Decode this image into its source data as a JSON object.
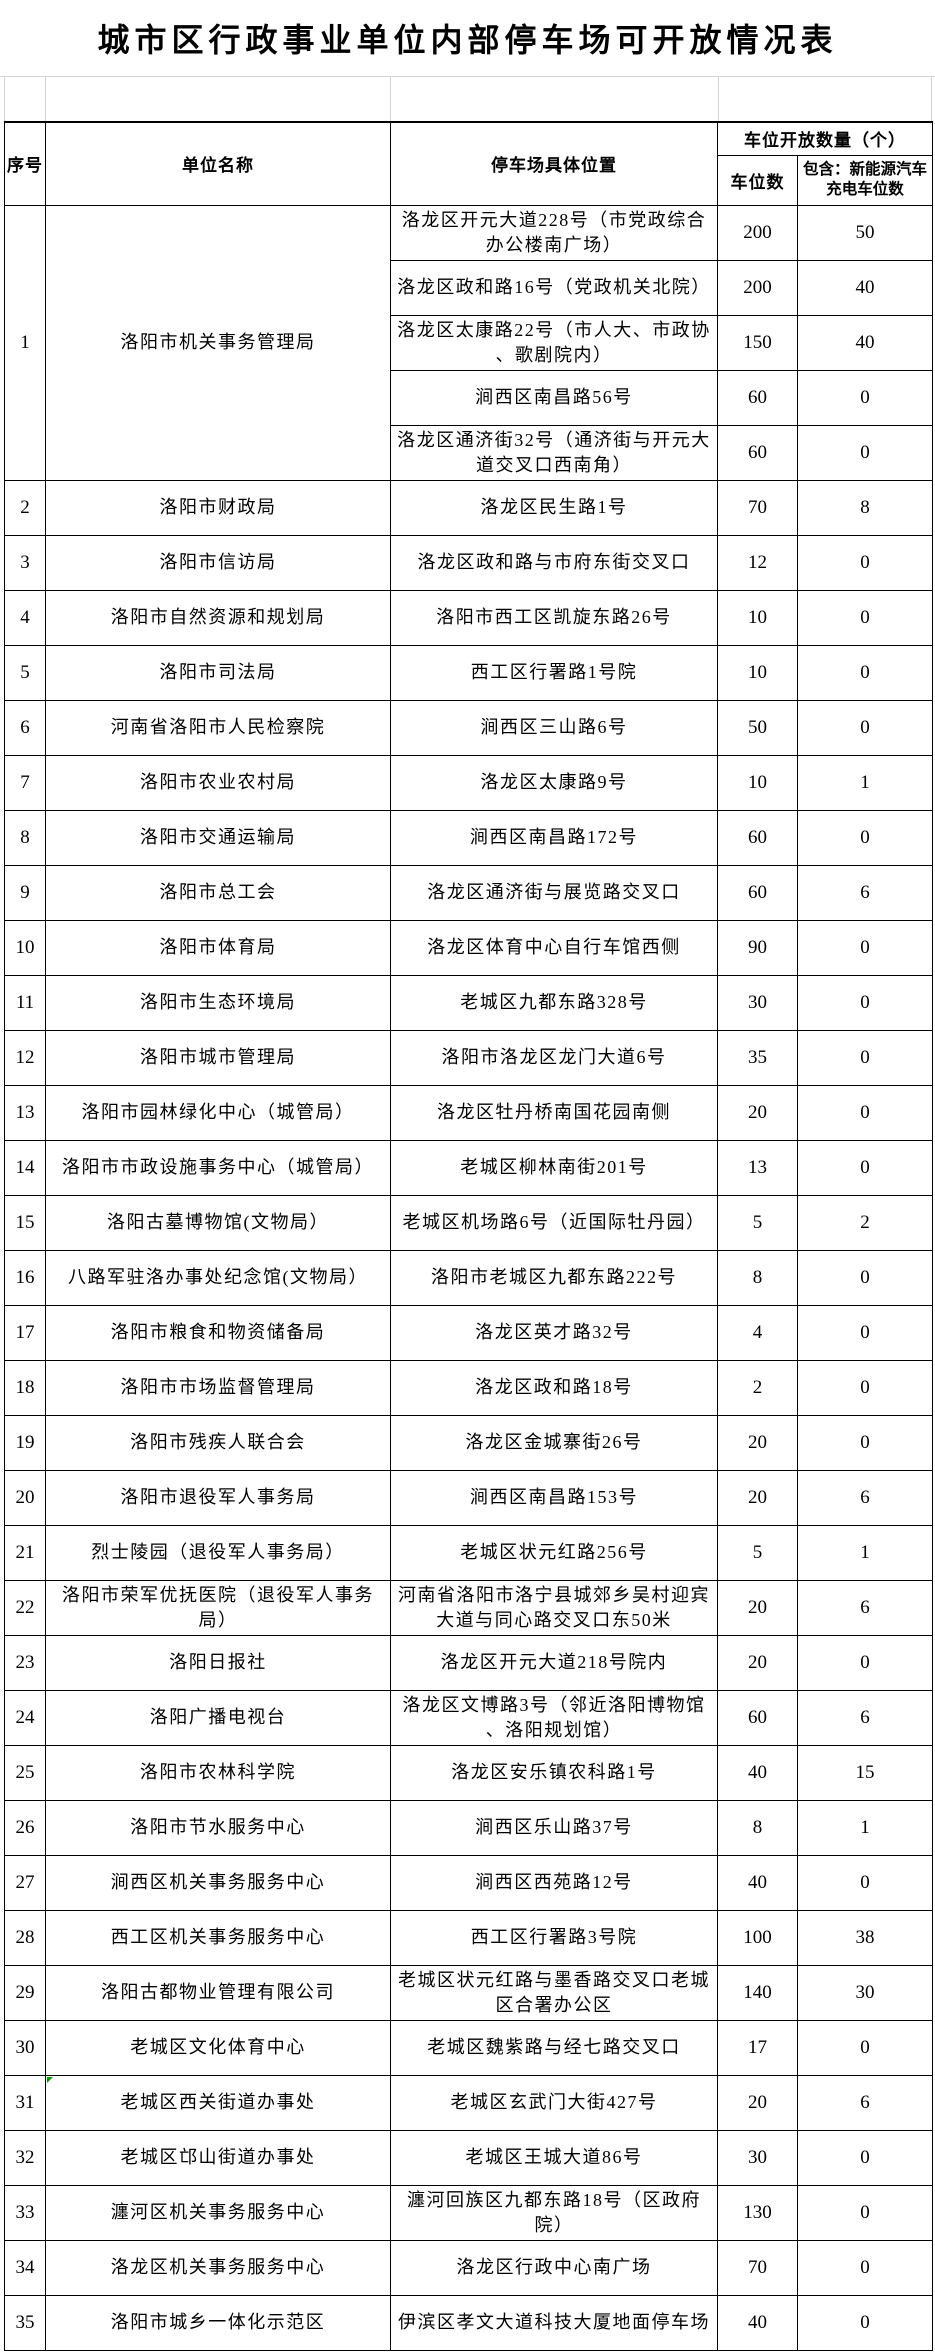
{
  "title": "城市区行政事业单位内部停车场可开放情况表",
  "colors": {
    "border": "#000000",
    "faint_grid": "#d4d4d4",
    "marker_green": "#00a000"
  },
  "table": {
    "headers": {
      "col_index": "序号",
      "col_unit": "单位名称",
      "col_location": "停车场具体位置",
      "col_count_group": "车位开放数量（个）",
      "col_spaces": "车位数",
      "col_charging": "包含：新能源汽车充电车位数"
    },
    "rows": [
      {
        "no": "1",
        "unit": "洛阳市机关事务管理局",
        "locations": [
          {
            "location": "洛龙区开元大道228号（市党政综合\n办公楼南广场）",
            "spaces": "200",
            "charging": "50"
          },
          {
            "location": "洛龙区政和路16号（党政机关北院）",
            "spaces": "200",
            "charging": "40"
          },
          {
            "location": "洛龙区太康路22号（市人大、市政协\n、歌剧院内）",
            "spaces": "150",
            "charging": "40"
          },
          {
            "location": "涧西区南昌路56号",
            "spaces": "60",
            "charging": "0"
          },
          {
            "location": "洛龙区通济街32号（通济街与开元大\n道交叉口西南角）",
            "spaces": "60",
            "charging": "0"
          }
        ]
      },
      {
        "no": "2",
        "unit": "洛阳市财政局",
        "locations": [
          {
            "location": "洛龙区民生路1号",
            "spaces": "70",
            "charging": "8"
          }
        ]
      },
      {
        "no": "3",
        "unit": "洛阳市信访局",
        "locations": [
          {
            "location": "洛龙区政和路与市府东街交叉口",
            "spaces": "12",
            "charging": "0"
          }
        ]
      },
      {
        "no": "4",
        "unit": "洛阳市自然资源和规划局",
        "locations": [
          {
            "location": "洛阳市西工区凯旋东路26号",
            "spaces": "10",
            "charging": "0"
          }
        ]
      },
      {
        "no": "5",
        "unit": "洛阳市司法局",
        "locations": [
          {
            "location": "西工区行署路1号院",
            "spaces": "10",
            "charging": "0"
          }
        ]
      },
      {
        "no": "6",
        "unit": "河南省洛阳市人民检察院",
        "locations": [
          {
            "location": "涧西区三山路6号",
            "spaces": "50",
            "charging": "0"
          }
        ]
      },
      {
        "no": "7",
        "unit": "洛阳市农业农村局",
        "locations": [
          {
            "location": "洛龙区太康路9号",
            "spaces": "10",
            "charging": "1"
          }
        ]
      },
      {
        "no": "8",
        "unit": "洛阳市交通运输局",
        "locations": [
          {
            "location": "涧西区南昌路172号",
            "spaces": "60",
            "charging": "0"
          }
        ]
      },
      {
        "no": "9",
        "unit": "洛阳市总工会",
        "locations": [
          {
            "location": "洛龙区通济街与展览路交叉口",
            "spaces": "60",
            "charging": "6"
          }
        ]
      },
      {
        "no": "10",
        "unit": "洛阳市体育局",
        "locations": [
          {
            "location": "洛龙区体育中心自行车馆西侧",
            "spaces": "90",
            "charging": "0"
          }
        ]
      },
      {
        "no": "11",
        "unit": "洛阳市生态环境局",
        "locations": [
          {
            "location": "老城区九都东路328号",
            "spaces": "30",
            "charging": "0"
          }
        ]
      },
      {
        "no": "12",
        "unit": "洛阳市城市管理局",
        "locations": [
          {
            "location": "洛阳市洛龙区龙门大道6号",
            "spaces": "35",
            "charging": "0"
          }
        ]
      },
      {
        "no": "13",
        "unit": "洛阳市园林绿化中心（城管局）",
        "locations": [
          {
            "location": "洛龙区牡丹桥南国花园南侧",
            "spaces": "20",
            "charging": "0"
          }
        ]
      },
      {
        "no": "14",
        "unit": "洛阳市市政设施事务中心（城管局）",
        "locations": [
          {
            "location": "老城区柳林南街201号",
            "spaces": "13",
            "charging": "0"
          }
        ]
      },
      {
        "no": "15",
        "unit": "洛阳古墓博物馆(文物局）",
        "locations": [
          {
            "location": "老城区机场路6号（近国际牡丹园）",
            "spaces": "5",
            "charging": "2"
          }
        ]
      },
      {
        "no": "16",
        "unit": "八路军驻洛办事处纪念馆(文物局）",
        "locations": [
          {
            "location": "洛阳市老城区九都东路222号",
            "spaces": "8",
            "charging": "0"
          }
        ]
      },
      {
        "no": "17",
        "unit": "洛阳市粮食和物资储备局",
        "locations": [
          {
            "location": "洛龙区英才路32号",
            "spaces": "4",
            "charging": "0"
          }
        ]
      },
      {
        "no": "18",
        "unit": "洛阳市市场监督管理局",
        "locations": [
          {
            "location": "洛龙区政和路18号",
            "spaces": "2",
            "charging": "0"
          }
        ]
      },
      {
        "no": "19",
        "unit": "洛阳市残疾人联合会",
        "locations": [
          {
            "location": "洛龙区金城寨街26号",
            "spaces": "20",
            "charging": "0"
          }
        ]
      },
      {
        "no": "20",
        "unit": "洛阳市退役军人事务局",
        "locations": [
          {
            "location": "涧西区南昌路153号",
            "spaces": "20",
            "charging": "6"
          }
        ]
      },
      {
        "no": "21",
        "unit": "烈士陵园（退役军人事务局）",
        "locations": [
          {
            "location": "老城区状元红路256号",
            "spaces": "5",
            "charging": "1"
          }
        ]
      },
      {
        "no": "22",
        "unit": "洛阳市荣军优抚医院（退役军人事务\n局）",
        "locations": [
          {
            "location": "河南省洛阳市洛宁县城郊乡吴村迎宾\n大道与同心路交叉口东50米",
            "spaces": "20",
            "charging": "6"
          }
        ]
      },
      {
        "no": "23",
        "unit": "洛阳日报社",
        "locations": [
          {
            "location": "洛龙区开元大道218号院内",
            "spaces": "20",
            "charging": "0"
          }
        ]
      },
      {
        "no": "24",
        "unit": "洛阳广播电视台",
        "locations": [
          {
            "location": "洛龙区文博路3号（邻近洛阳博物馆\n、洛阳规划馆）",
            "spaces": "60",
            "charging": "6"
          }
        ]
      },
      {
        "no": "25",
        "unit": "洛阳市农林科学院",
        "locations": [
          {
            "location": "洛龙区安乐镇农科路1号",
            "spaces": "40",
            "charging": "15"
          }
        ]
      },
      {
        "no": "26",
        "unit": "洛阳市节水服务中心",
        "locations": [
          {
            "location": "涧西区乐山路37号",
            "spaces": "8",
            "charging": "1"
          }
        ]
      },
      {
        "no": "27",
        "unit": "涧西区机关事务服务中心",
        "locations": [
          {
            "location": "涧西区西苑路12号",
            "spaces": "40",
            "charging": "0"
          }
        ]
      },
      {
        "no": "28",
        "unit": "西工区机关事务服务中心",
        "locations": [
          {
            "location": "西工区行署路3号院",
            "spaces": "100",
            "charging": "38"
          }
        ]
      },
      {
        "no": "29",
        "unit": "洛阳古都物业管理有限公司",
        "locations": [
          {
            "location": "老城区状元红路与墨香路交叉口老城\n区合署办公区",
            "spaces": "140",
            "charging": "30"
          }
        ]
      },
      {
        "no": "30",
        "unit": "老城区文化体育中心",
        "locations": [
          {
            "location": "老城区魏紫路与经七路交叉口",
            "spaces": "17",
            "charging": "0"
          }
        ]
      },
      {
        "no": "31",
        "unit": "老城区西关街道办事处",
        "corner_marker": true,
        "locations": [
          {
            "location": "老城区玄武门大街427号",
            "spaces": "20",
            "charging": "6"
          }
        ]
      },
      {
        "no": "32",
        "unit": "老城区邙山街道办事处",
        "locations": [
          {
            "location": "老城区王城大道86号",
            "spaces": "30",
            "charging": "0"
          }
        ]
      },
      {
        "no": "33",
        "unit": "瀍河区机关事务服务中心",
        "locations": [
          {
            "location": "瀍河回族区九都东路18号（区政府\n院）",
            "spaces": "130",
            "charging": "0"
          }
        ]
      },
      {
        "no": "34",
        "unit": "洛龙区机关事务服务中心",
        "locations": [
          {
            "location": "洛龙区行政中心南广场",
            "spaces": "70",
            "charging": "0"
          }
        ]
      },
      {
        "no": "35",
        "unit": "洛阳市城乡一体化示范区",
        "locations": [
          {
            "location": "伊滨区孝文大道科技大厦地面停车场",
            "spaces": "40",
            "charging": "0"
          }
        ]
      }
    ]
  }
}
